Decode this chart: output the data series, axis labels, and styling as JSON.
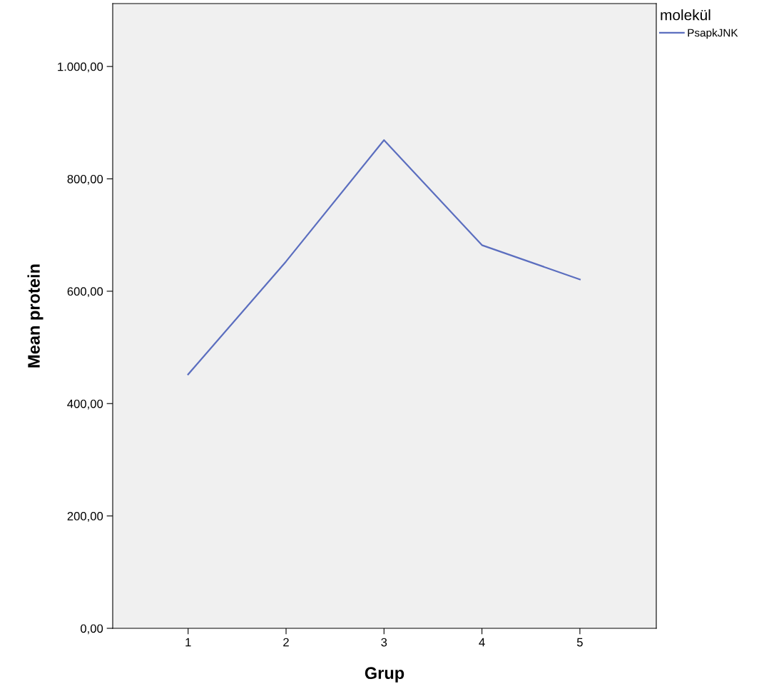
{
  "chart_data": {
    "type": "line",
    "xlabel": "Grup",
    "ylabel": "Mean protein",
    "legend_title": "molekül",
    "categories": [
      "1",
      "2",
      "3",
      "4",
      "5"
    ],
    "series": [
      {
        "name": "PsapkJNK",
        "color": "#5b6ebf",
        "values": [
          452,
          653,
          869,
          682,
          621
        ]
      }
    ],
    "ylim": [
      0,
      1112
    ],
    "yticks": [
      {
        "value": 0,
        "label": "0,00"
      },
      {
        "value": 200,
        "label": "200,00"
      },
      {
        "value": 400,
        "label": "400,00"
      },
      {
        "value": 600,
        "label": "600,00"
      },
      {
        "value": 800,
        "label": "800,00"
      },
      {
        "value": 1000,
        "label": "1.000,00"
      }
    ],
    "grid": false,
    "legend": "top right",
    "marker": "none",
    "line_style": "solid"
  }
}
